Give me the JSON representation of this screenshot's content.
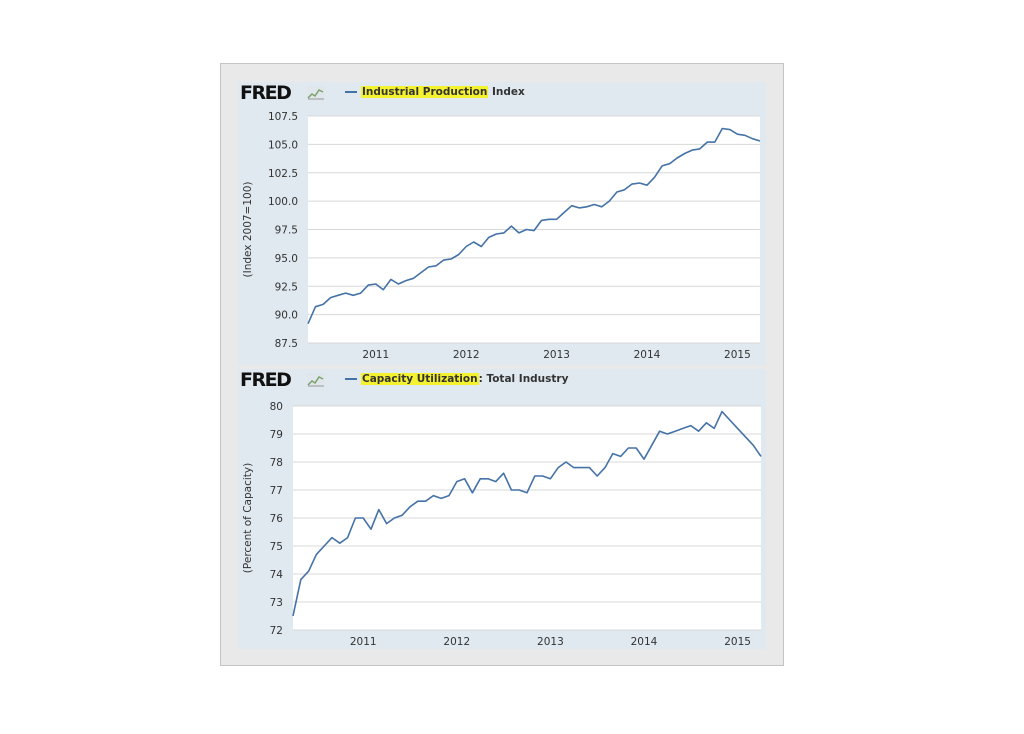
{
  "colors": {
    "line": "#4572a7",
    "highlight": "#f4f12e",
    "panel_bg": "#e1e9f0",
    "plot_bg": "#ffffff",
    "frame_bg": "#e9e9e9"
  },
  "logo_text": "FRED",
  "logo_graph_icon": "small-line-chart-icon",
  "chart_data": [
    {
      "type": "line",
      "title": "Industrial Production Index",
      "legend": {
        "highlighted": "Industrial Production",
        "rest": " Index",
        "placement": "top-left"
      },
      "xlabel": "",
      "ylabel": "(Index 2007=100)",
      "grid": true,
      "ylim": [
        87.5,
        107.5
      ],
      "yticks": [
        "87.5",
        "90.0",
        "92.5",
        "95.0",
        "97.5",
        "100.0",
        "102.5",
        "105.0",
        "107.5"
      ],
      "xticks": [
        "2011",
        "2012",
        "2013",
        "2014",
        "2015"
      ],
      "x_start": "2010-04",
      "x_end": "2015-04",
      "series": [
        {
          "values": [
            89.2,
            90.7,
            90.9,
            91.5,
            91.7,
            91.9,
            91.7,
            91.9,
            92.6,
            92.7,
            92.2,
            93.1,
            92.7,
            93.0,
            93.2,
            93.7,
            94.2,
            94.3,
            94.8,
            94.9,
            95.3,
            96.0,
            96.4,
            96.0,
            96.8,
            97.1,
            97.2,
            97.8,
            97.2,
            97.5,
            97.4,
            98.3,
            98.4,
            98.4,
            99.0,
            99.6,
            99.4,
            99.5,
            99.7,
            99.5,
            100.0,
            100.8,
            101.0,
            101.5,
            101.6,
            101.4,
            102.1,
            103.1,
            103.3,
            103.8,
            104.2,
            104.5,
            104.6,
            105.2,
            105.2,
            106.4,
            106.3,
            105.9,
            105.8,
            105.5,
            105.3
          ]
        }
      ]
    },
    {
      "type": "line",
      "title": "Capacity Utilization: Total Industry",
      "legend": {
        "highlighted": "Capacity Utilization",
        "rest": ": Total Industry",
        "placement": "top-left"
      },
      "xlabel": "",
      "ylabel": "(Percent of Capacity)",
      "grid": true,
      "ylim": [
        72,
        80
      ],
      "yticks": [
        "72",
        "73",
        "74",
        "75",
        "76",
        "77",
        "78",
        "79",
        "80"
      ],
      "xticks": [
        "2011",
        "2012",
        "2013",
        "2014",
        "2015"
      ],
      "x_start": "2010-04",
      "x_end": "2015-04",
      "series": [
        {
          "values": [
            72.5,
            73.8,
            74.1,
            74.7,
            75.0,
            75.3,
            75.1,
            75.3,
            76.0,
            76.0,
            75.6,
            76.3,
            75.8,
            76.0,
            76.1,
            76.4,
            76.6,
            76.6,
            76.8,
            76.7,
            76.8,
            77.3,
            77.4,
            76.9,
            77.4,
            77.4,
            77.3,
            77.6,
            77.0,
            77.0,
            76.9,
            77.5,
            77.5,
            77.4,
            77.8,
            78.0,
            77.8,
            77.8,
            77.8,
            77.5,
            77.8,
            78.3,
            78.2,
            78.5,
            78.5,
            78.1,
            78.6,
            79.1,
            79.0,
            79.1,
            79.2,
            79.3,
            79.1,
            79.4,
            79.2,
            79.8,
            79.5,
            79.2,
            78.9,
            78.6,
            78.2
          ]
        }
      ]
    }
  ]
}
